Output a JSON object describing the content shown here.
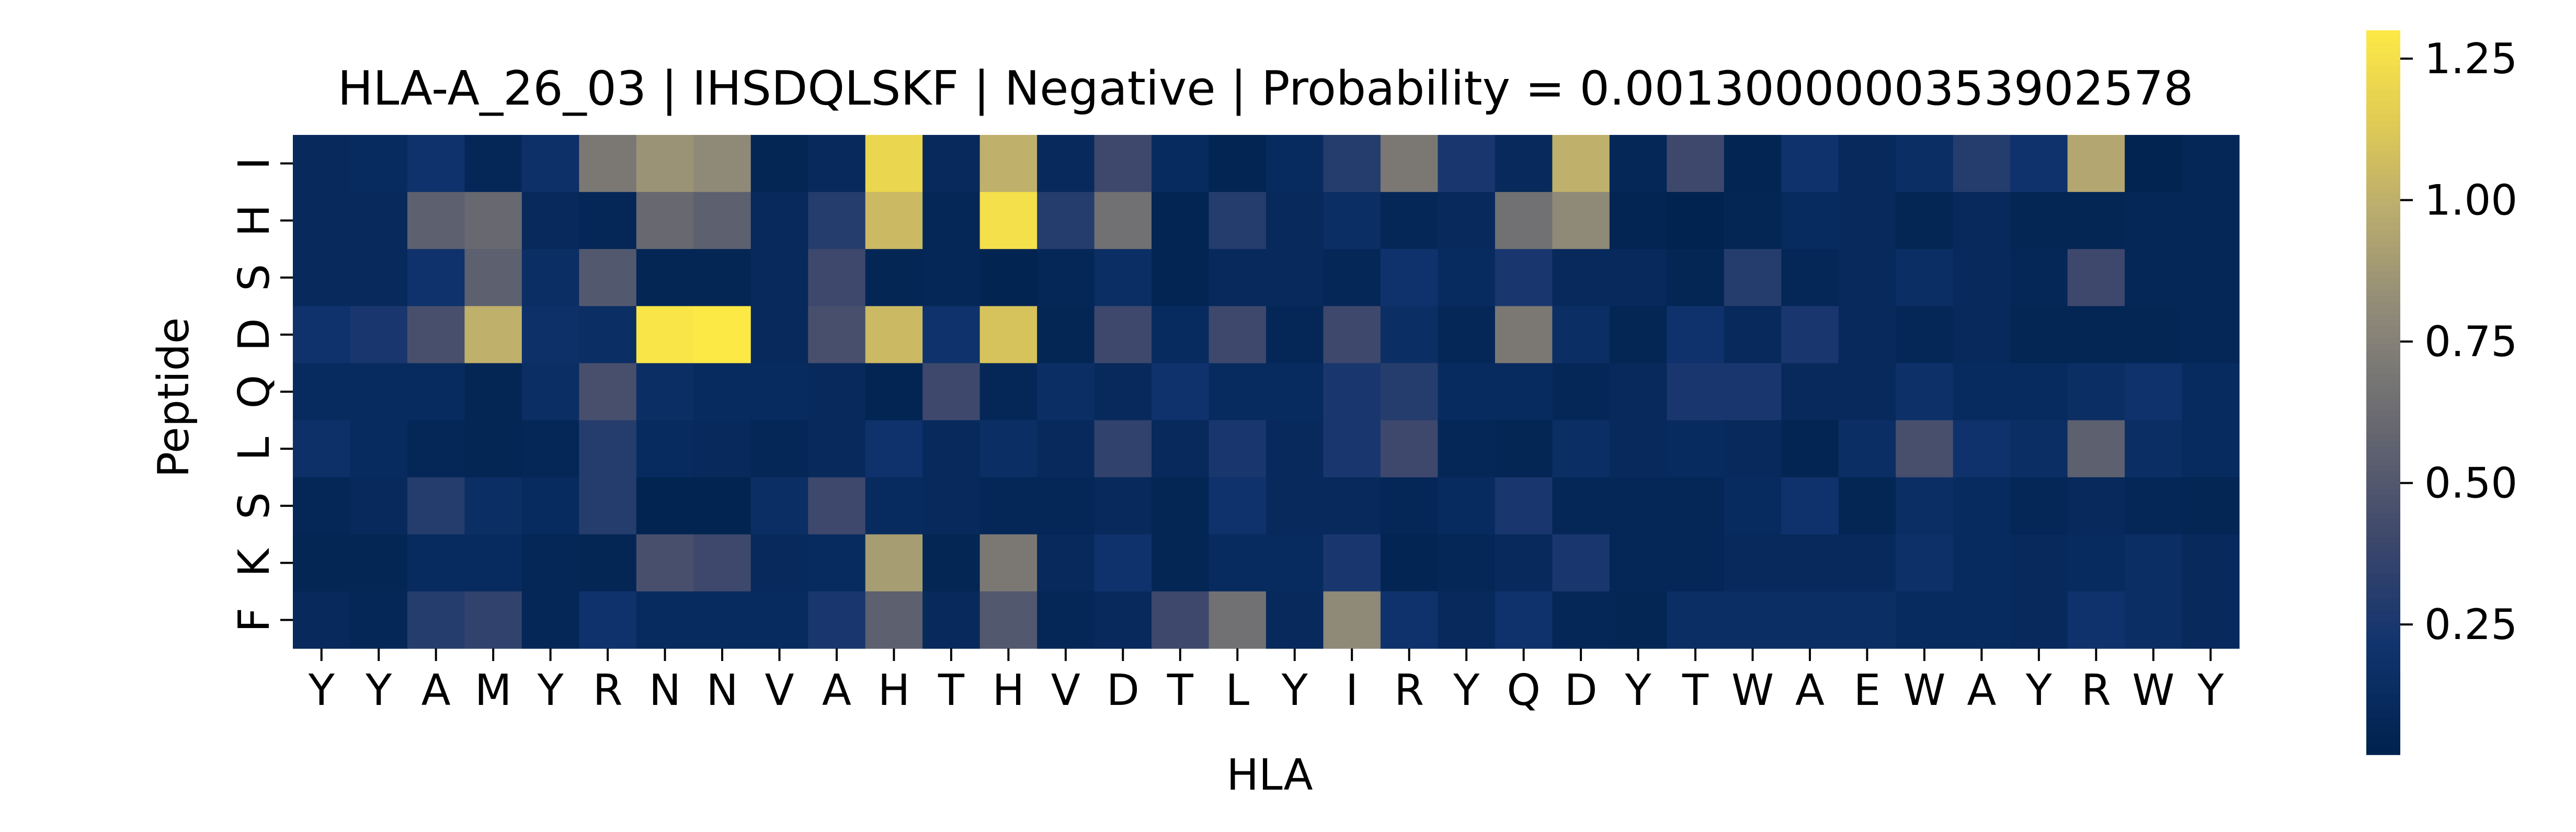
{
  "chart_data": {
    "type": "heatmap",
    "title": "HLA-A_26_03 | IHSDQLSKF | Negative | Probability = 0.0013000000353902578",
    "xlabel": "HLA",
    "ylabel": "Peptide",
    "x_tick_labels": [
      "Y",
      "Y",
      "A",
      "M",
      "Y",
      "R",
      "N",
      "N",
      "V",
      "A",
      "H",
      "T",
      "H",
      "V",
      "D",
      "T",
      "L",
      "Y",
      "I",
      "R",
      "Y",
      "Q",
      "D",
      "Y",
      "T",
      "W",
      "A",
      "E",
      "W",
      "A",
      "Y",
      "R",
      "W",
      "Y"
    ],
    "y_tick_labels": [
      "I",
      "H",
      "S",
      "D",
      "Q",
      "L",
      "S",
      "K",
      "F"
    ],
    "colormap": "cividis",
    "color_range": [
      0.02,
      1.3
    ],
    "colorbar_ticks": [
      "0.25",
      "0.50",
      "0.75",
      "1.00",
      "1.25"
    ],
    "colorbar_tick_values": [
      0.25,
      0.5,
      0.75,
      1.0,
      1.25
    ],
    "values": [
      [
        0.1,
        0.12,
        0.2,
        0.08,
        0.18,
        0.7,
        0.85,
        0.8,
        0.06,
        0.1,
        1.2,
        0.1,
        1.0,
        0.1,
        0.4,
        0.12,
        0.05,
        0.12,
        0.3,
        0.7,
        0.25,
        0.1,
        1.0,
        0.08,
        0.4,
        0.05,
        0.2,
        0.1,
        0.15,
        0.3,
        0.2,
        0.95,
        0.04,
        0.08
      ],
      [
        0.1,
        0.1,
        0.55,
        0.6,
        0.1,
        0.08,
        0.6,
        0.55,
        0.1,
        0.3,
        1.05,
        0.08,
        1.25,
        0.3,
        0.65,
        0.05,
        0.3,
        0.1,
        0.15,
        0.08,
        0.1,
        0.65,
        0.8,
        0.05,
        0.03,
        0.06,
        0.12,
        0.1,
        0.06,
        0.1,
        0.06,
        0.06,
        0.08,
        0.08
      ],
      [
        0.1,
        0.1,
        0.2,
        0.55,
        0.15,
        0.5,
        0.06,
        0.06,
        0.1,
        0.4,
        0.06,
        0.08,
        0.04,
        0.08,
        0.15,
        0.05,
        0.1,
        0.1,
        0.08,
        0.2,
        0.12,
        0.25,
        0.1,
        0.1,
        0.06,
        0.3,
        0.08,
        0.1,
        0.15,
        0.1,
        0.08,
        0.4,
        0.08,
        0.08
      ],
      [
        0.2,
        0.25,
        0.45,
        1.0,
        0.18,
        0.15,
        1.28,
        1.3,
        0.1,
        0.45,
        1.05,
        0.2,
        1.1,
        0.06,
        0.4,
        0.12,
        0.4,
        0.08,
        0.4,
        0.15,
        0.08,
        0.7,
        0.15,
        0.06,
        0.2,
        0.1,
        0.25,
        0.1,
        0.08,
        0.1,
        0.06,
        0.06,
        0.06,
        0.08
      ],
      [
        0.12,
        0.12,
        0.12,
        0.06,
        0.15,
        0.45,
        0.15,
        0.12,
        0.12,
        0.1,
        0.05,
        0.4,
        0.08,
        0.15,
        0.1,
        0.2,
        0.12,
        0.12,
        0.25,
        0.3,
        0.12,
        0.12,
        0.08,
        0.1,
        0.25,
        0.25,
        0.1,
        0.1,
        0.18,
        0.12,
        0.12,
        0.15,
        0.2,
        0.12
      ],
      [
        0.18,
        0.12,
        0.08,
        0.06,
        0.08,
        0.3,
        0.12,
        0.1,
        0.08,
        0.1,
        0.2,
        0.1,
        0.15,
        0.1,
        0.35,
        0.1,
        0.25,
        0.1,
        0.25,
        0.4,
        0.08,
        0.06,
        0.15,
        0.1,
        0.12,
        0.1,
        0.05,
        0.15,
        0.45,
        0.2,
        0.15,
        0.55,
        0.15,
        0.12
      ],
      [
        0.08,
        0.1,
        0.3,
        0.15,
        0.12,
        0.3,
        0.04,
        0.04,
        0.15,
        0.4,
        0.12,
        0.1,
        0.08,
        0.08,
        0.1,
        0.06,
        0.2,
        0.1,
        0.1,
        0.08,
        0.12,
        0.25,
        0.08,
        0.08,
        0.08,
        0.12,
        0.2,
        0.06,
        0.15,
        0.12,
        0.08,
        0.1,
        0.08,
        0.06
      ],
      [
        0.06,
        0.06,
        0.12,
        0.12,
        0.08,
        0.06,
        0.45,
        0.4,
        0.1,
        0.12,
        0.9,
        0.06,
        0.7,
        0.1,
        0.2,
        0.06,
        0.12,
        0.12,
        0.25,
        0.05,
        0.08,
        0.1,
        0.25,
        0.08,
        0.08,
        0.1,
        0.1,
        0.1,
        0.18,
        0.12,
        0.1,
        0.12,
        0.15,
        0.1
      ],
      [
        0.1,
        0.08,
        0.3,
        0.35,
        0.08,
        0.2,
        0.12,
        0.12,
        0.12,
        0.25,
        0.55,
        0.1,
        0.5,
        0.08,
        0.1,
        0.4,
        0.65,
        0.1,
        0.8,
        0.2,
        0.1,
        0.2,
        0.08,
        0.06,
        0.15,
        0.15,
        0.15,
        0.15,
        0.12,
        0.12,
        0.1,
        0.2,
        0.15,
        0.1
      ]
    ]
  }
}
